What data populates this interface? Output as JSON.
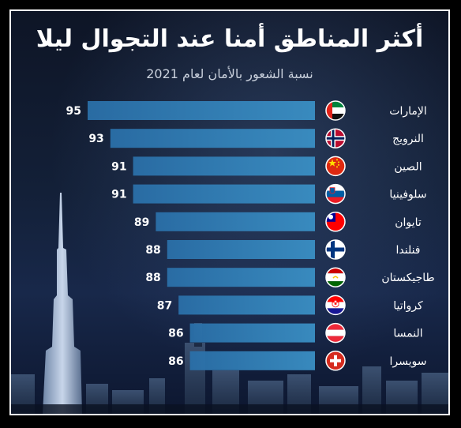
{
  "chart_data": {
    "type": "bar",
    "orientation": "horizontal",
    "title": "أكثر المناطق أمنا عند التجوال ليلا",
    "subtitle": "نسبة الشعور بالأمان لعام 2021",
    "categories": [
      "الإمارات",
      "النرويج",
      "الصين",
      "سلوفينيا",
      "تايوان",
      "فنلندا",
      "طاجيكستان",
      "كرواتيا",
      "النمسا",
      "سويسرا"
    ],
    "values": [
      95,
      93,
      91,
      91,
      89,
      88,
      88,
      87,
      86,
      86
    ],
    "flags": [
      "uae-flag-icon",
      "norway-flag-icon",
      "china-flag-icon",
      "slovenia-flag-icon",
      "taiwan-flag-icon",
      "finland-flag-icon",
      "tajikistan-flag-icon",
      "croatia-flag-icon",
      "austria-flag-icon",
      "switzerland-flag-icon"
    ],
    "bar_color": "#3a8fc4",
    "label_color": "#ffffff",
    "grid": false,
    "legend": "none"
  }
}
